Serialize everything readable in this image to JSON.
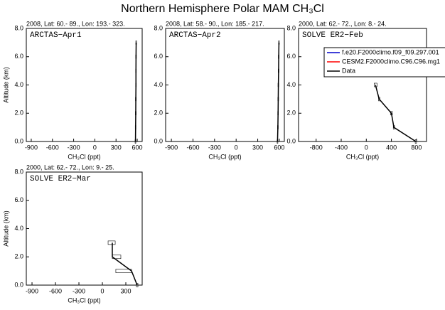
{
  "title": "Northern Hemisphere Polar MAM CH₃Cl",
  "chart_data": [
    {
      "type": "line",
      "subtitle": "2008, Lat:  60.- 89., Lon: 193.- 323.",
      "panel_label": "ARCTAS−Apr1",
      "xlabel": "CH₃Cl (ppt)",
      "ylabel": "Altitude (km)",
      "xlim": [
        -970,
        670
      ],
      "xticks": [
        -900,
        -600,
        -300,
        0,
        300,
        600
      ],
      "ylim": [
        0,
        8
      ],
      "yticks": [
        {
          "value": 0,
          "label": "0.0"
        },
        {
          "value": 2,
          "label": "2.0"
        },
        {
          "value": 4,
          "label": "4.0"
        },
        {
          "value": 6,
          "label": "6.0"
        },
        {
          "value": 8,
          "label": "8.0"
        }
      ],
      "series": [
        {
          "color": "#000000",
          "x": [
            575,
            577,
            579,
            580,
            582,
            582,
            583,
            585
          ],
          "y": [
            0,
            1,
            2,
            3,
            4,
            5,
            6,
            7
          ],
          "box_lo": [
            570,
            572,
            574,
            575,
            577,
            577,
            578,
            580
          ],
          "box_hi": [
            580,
            582,
            584,
            585,
            587,
            587,
            588,
            590
          ]
        }
      ]
    },
    {
      "type": "line",
      "subtitle": "2008, Lat:  58.- 90., Lon: 185.- 217.",
      "panel_label": "ARCTAS−Apr2",
      "xlabel": "CH₃Cl (ppt)",
      "xlim": [
        -980,
        670
      ],
      "xticks": [
        -900,
        -600,
        -300,
        0,
        300,
        600
      ],
      "ylim": [
        0,
        8
      ],
      "yticks": [
        {
          "value": 0,
          "label": "0.0"
        },
        {
          "value": 2,
          "label": "2.0"
        },
        {
          "value": 4,
          "label": "4.0"
        },
        {
          "value": 6,
          "label": "6.0"
        },
        {
          "value": 8,
          "label": "8.0"
        }
      ],
      "series": [
        {
          "color": "#000000",
          "x": [
            575,
            580,
            583,
            585,
            587,
            590,
            592,
            595
          ],
          "y": [
            0,
            1,
            2,
            3,
            4,
            5,
            6,
            7
          ],
          "box_lo": [
            570,
            575,
            578,
            580,
            582,
            585,
            587,
            590
          ],
          "box_hi": [
            580,
            585,
            588,
            590,
            592,
            595,
            597,
            600
          ]
        }
      ]
    },
    {
      "type": "line",
      "subtitle": "2000, Lat:  62.- 72., Lon:  8.- 24.",
      "panel_label": "SOLVE ER2−Feb",
      "xlabel": "CH₃Cl (ppt)",
      "xlim": [
        -1080,
        960
      ],
      "xticks": [
        -800,
        -400,
        0,
        400,
        800
      ],
      "ylim": [
        0,
        8
      ],
      "yticks": [
        {
          "value": 0,
          "label": "0.0"
        },
        {
          "value": 2,
          "label": "2.0"
        },
        {
          "value": 4,
          "label": "4.0"
        },
        {
          "value": 6,
          "label": "6.0"
        },
        {
          "value": 8,
          "label": "8.0"
        }
      ],
      "series": [
        {
          "name": "f.e20.F2000climo.f09_f09.297.001",
          "color": "#0000cc"
        },
        {
          "name": "CESM2.F2000climo.C96.C96.mg1",
          "color": "#ff0000"
        },
        {
          "name": "Data",
          "color": "#000000",
          "x": [
            790,
            440,
            400,
            205,
            146
          ],
          "y": [
            0,
            1,
            2,
            3,
            4
          ],
          "box_lo": [
            780,
            430,
            385,
            195,
            125
          ],
          "box_hi": [
            800,
            450,
            415,
            215,
            170
          ]
        }
      ]
    },
    {
      "type": "line",
      "subtitle": "2000, Lat:  62.- 72., Lon:  9.- 25.",
      "panel_label": "SOLVE ER2−Mar",
      "xlabel": "CH₃Cl (ppt)",
      "ylabel": "Altitude (km)",
      "xlim": [
        -973,
        509
      ],
      "xticks": [
        -900,
        -600,
        -300,
        0,
        300
      ],
      "ylim": [
        0,
        8
      ],
      "yticks": [
        {
          "value": 0,
          "label": "0.0"
        },
        {
          "value": 2,
          "label": "2.0"
        },
        {
          "value": 4,
          "label": "4.0"
        },
        {
          "value": 6,
          "label": "6.0"
        },
        {
          "value": 8,
          "label": "8.0"
        }
      ],
      "series": [
        {
          "color": "#000000",
          "x": [
            445,
            373,
            127,
            127
          ],
          "y": [
            0,
            1,
            2,
            3
          ],
          "box_lo": [
            435,
            172,
            127,
            73
          ],
          "box_hi": [
            455,
            373,
            236,
            164
          ]
        }
      ]
    }
  ]
}
